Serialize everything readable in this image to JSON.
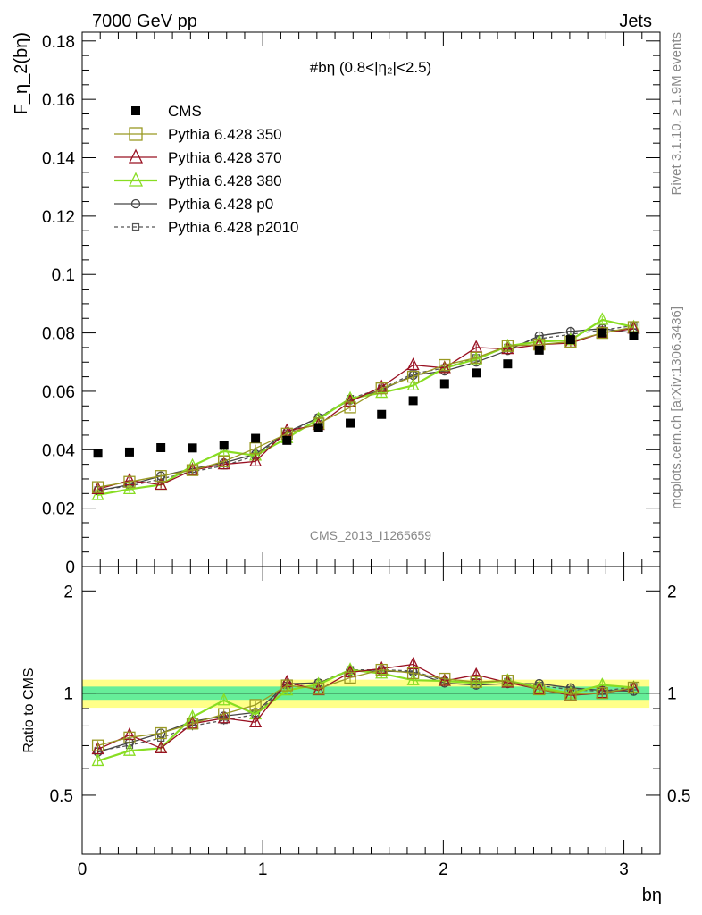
{
  "header": {
    "left": "7000 GeV pp",
    "right": "Jets"
  },
  "side_texts": {
    "rivet": "Rivet 3.1.10, ≥ 1.9M events",
    "mcplots": "mcplots.cern.ch [arXiv:1306.3436]"
  },
  "watermark": "CMS_2013_I1265659",
  "top_panel": {
    "title": "#bη (0.8<|η₂|<2.5)",
    "ylabel": "F_η_2(bη)",
    "ylim": [
      0,
      0.183
    ],
    "yticks": [
      "0",
      "0.02",
      "0.04",
      "0.06",
      "0.08",
      "0.1",
      "0.12",
      "0.14",
      "0.16",
      "0.18"
    ]
  },
  "bottom_panel": {
    "ylabel": "Ratio to CMS",
    "yticks": [
      "0.5",
      "1",
      "2"
    ],
    "band_colors": {
      "inner": "#66ee99",
      "outer": "#ffff88"
    }
  },
  "xaxis": {
    "label": "bη",
    "xlim": [
      0,
      3.2
    ],
    "ticks": [
      "0",
      "1",
      "2",
      "3"
    ]
  },
  "legend": [
    {
      "name": "CMS",
      "color": "#000000",
      "marker": "square-filled",
      "line": "none"
    },
    {
      "name": "Pythia 6.428 350",
      "color": "#999922",
      "marker": "square-open",
      "line": "solid"
    },
    {
      "name": "Pythia 6.428 370",
      "color": "#991122",
      "marker": "triangle-open",
      "line": "solid"
    },
    {
      "name": "Pythia 6.428 380",
      "color": "#88dd22",
      "marker": "triangle-open",
      "line": "solid"
    },
    {
      "name": "Pythia 6.428 p0",
      "color": "#444444",
      "marker": "circle-open",
      "line": "solid"
    },
    {
      "name": "Pythia 6.428 p2010",
      "color": "#555555",
      "marker": "square-open-small",
      "line": "dashed"
    }
  ],
  "chart_data": {
    "type": "line",
    "x": [
      0.087,
      0.262,
      0.436,
      0.611,
      0.785,
      0.96,
      1.134,
      1.309,
      1.484,
      1.658,
      1.833,
      2.007,
      2.182,
      2.356,
      2.531,
      2.705,
      2.88,
      3.054
    ],
    "series": [
      {
        "name": "CMS",
        "values": [
          0.0388,
          0.0392,
          0.0407,
          0.0406,
          0.0415,
          0.0439,
          0.0432,
          0.0476,
          0.0491,
          0.0521,
          0.0568,
          0.0626,
          0.0663,
          0.0694,
          0.0741,
          0.0777,
          0.08,
          0.079
        ]
      },
      {
        "name": "Pythia 6.428 350",
        "values": [
          0.0272,
          0.029,
          0.031,
          0.033,
          0.036,
          0.0405,
          0.0455,
          0.049,
          0.0545,
          0.061,
          0.065,
          0.069,
          0.0715,
          0.0755,
          0.076,
          0.077,
          0.08,
          0.082
        ]
      },
      {
        "name": "Pythia 6.428 370",
        "values": [
          0.0265,
          0.0295,
          0.028,
          0.033,
          0.035,
          0.036,
          0.0465,
          0.0485,
          0.0565,
          0.0615,
          0.069,
          0.068,
          0.075,
          0.0745,
          0.076,
          0.0765,
          0.08,
          0.0815
        ]
      },
      {
        "name": "Pythia 6.428 380",
        "values": [
          0.0245,
          0.0265,
          0.028,
          0.0345,
          0.0395,
          0.038,
          0.044,
          0.0505,
          0.0575,
          0.0595,
          0.062,
          0.068,
          0.071,
          0.0755,
          0.077,
          0.0775,
          0.0845,
          0.082
        ]
      },
      {
        "name": "Pythia 6.428 p0",
        "values": [
          0.026,
          0.028,
          0.031,
          0.0335,
          0.0355,
          0.0385,
          0.046,
          0.051,
          0.057,
          0.0605,
          0.0655,
          0.067,
          0.07,
          0.074,
          0.079,
          0.0805,
          0.0815,
          0.08
        ]
      },
      {
        "name": "Pythia 6.428 p2010",
        "values": [
          0.0262,
          0.0275,
          0.03,
          0.0325,
          0.0345,
          0.038,
          0.0455,
          0.051,
          0.0575,
          0.061,
          0.066,
          0.068,
          0.0715,
          0.075,
          0.078,
          0.0795,
          0.081,
          0.0825
        ]
      }
    ],
    "ratio": {
      "ylim": [
        0.335,
        2.36
      ],
      "band_inner": 0.045,
      "band_outer": 0.095
    }
  }
}
